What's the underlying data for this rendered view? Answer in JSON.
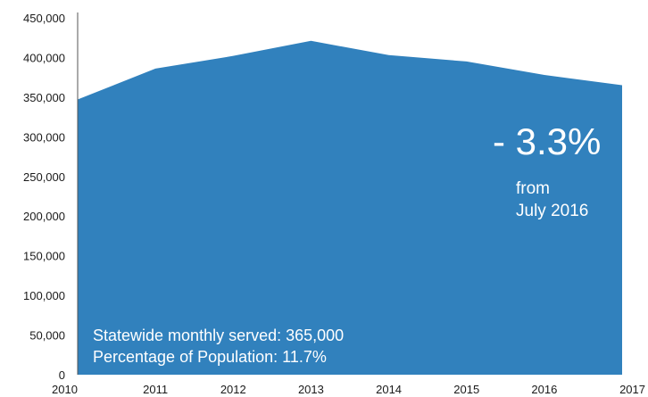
{
  "chart_data": {
    "type": "area",
    "x": [
      "2010",
      "2011",
      "2012",
      "2013",
      "2014",
      "2015",
      "2016",
      "2017"
    ],
    "values": [
      347000,
      386000,
      402000,
      421000,
      403000,
      395000,
      378000,
      365000
    ],
    "ylim": [
      0,
      450000
    ],
    "yticks": [
      "0",
      "50,000",
      "100,000",
      "150,000",
      "200,000",
      "250,000",
      "300,000",
      "350,000",
      "400,000",
      "450,000"
    ],
    "color": "#3181bd",
    "grid": false
  },
  "annotations": {
    "change": "- 3.3%",
    "from_line1": "from",
    "from_line2": "July 2016",
    "served": "Statewide monthly served:  365,000",
    "percentage": "Percentage of Population:  11.7%"
  }
}
